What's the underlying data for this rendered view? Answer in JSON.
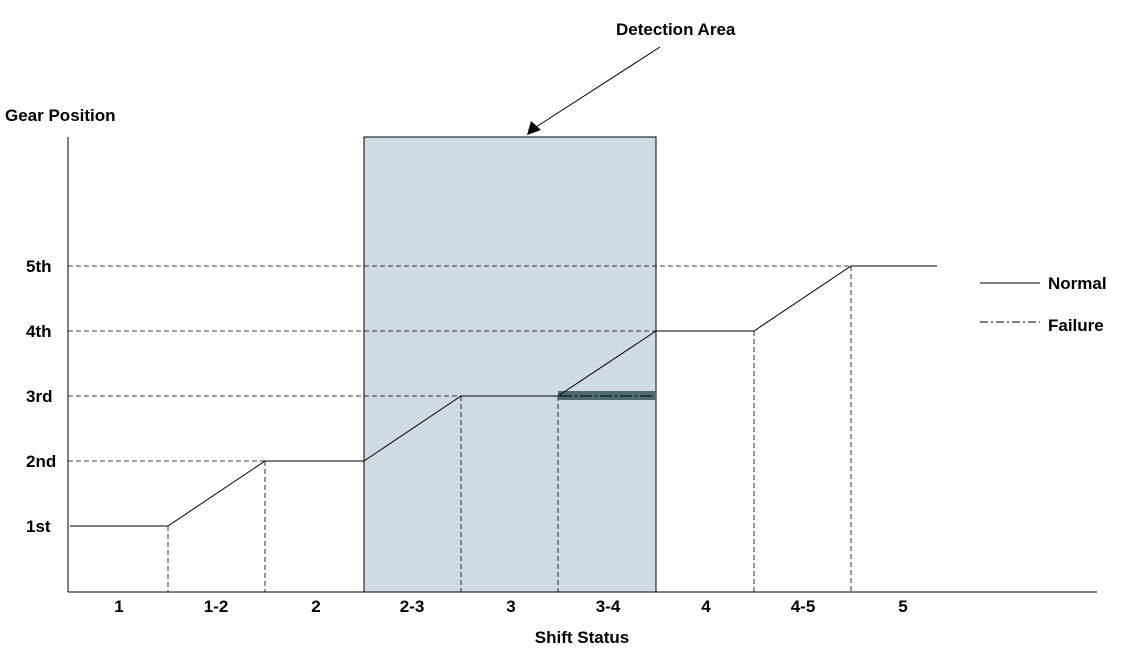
{
  "title": "Detection Area",
  "y_axis_label": "Gear Position",
  "x_axis_label": "Shift Status",
  "y_levels": [
    "1st",
    "2nd",
    "3rd",
    "4th",
    "5th"
  ],
  "x_categories": [
    "1",
    "1-2",
    "2",
    "2-3",
    "3",
    "3-4",
    "4",
    "4-5",
    "5"
  ],
  "legend": {
    "normal": "Normal",
    "failure": "Failure"
  },
  "colors": {
    "detection_area": "#cfdbe2",
    "failure_band": "#4f6b6e",
    "line": "#000000"
  },
  "normal_path": [
    [
      "start",
      1
    ],
    [
      "1",
      1
    ],
    [
      "1-2",
      2
    ],
    [
      "2",
      2
    ],
    [
      "2-3",
      3
    ],
    [
      "3",
      3
    ],
    [
      "3-4",
      4
    ],
    [
      "4",
      4
    ],
    [
      "4-5",
      5
    ],
    [
      "5",
      5
    ]
  ],
  "failure_segment": {
    "from": "3",
    "to": "3-4",
    "level": 3
  },
  "detection_area": {
    "from": "2",
    "to": "3-4"
  }
}
